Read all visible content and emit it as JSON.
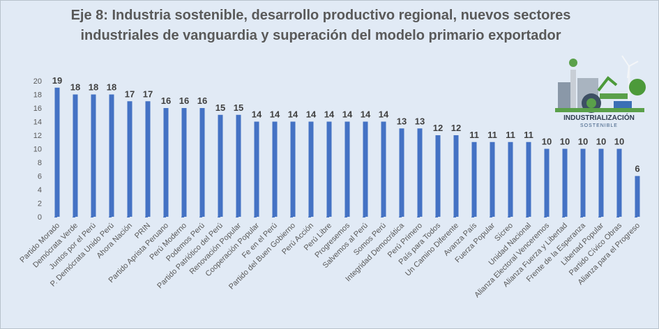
{
  "chart_data": {
    "type": "bar",
    "title": "Eje 8: Industria sostenible, desarrollo productivo regional, nuevos sectores industriales de vanguardia y superación del modelo primario exportador",
    "xlabel": "",
    "ylabel": "",
    "ylim": [
      0,
      20
    ],
    "yticks": [
      0,
      2,
      4,
      6,
      8,
      10,
      12,
      14,
      16,
      18,
      20
    ],
    "grid": false,
    "bar_color": "#4472c4",
    "categories": [
      "Partido Morado",
      "Demócrata Verde",
      "Juntos por el Perú",
      "P. Demócrata Unido Perú",
      "Ahora Nación",
      "PRIN",
      "Partido Aprista Peruano",
      "Perú Moderno",
      "Podemos Perú",
      "Partido Patriótico del Perú",
      "Renovación Popular",
      "Cooperación Popular",
      "Fe en el Perú",
      "Partido del Buen Gobierno",
      "Perú Acción",
      "Perú Libre",
      "Progresemos",
      "Salvemos al Perú",
      "Somos Perú",
      "Integridad Democrática",
      "Perú Primero",
      "País para Todos",
      "Un Camino Diferente",
      "Avanza País",
      "Fuerza Popular",
      "Sícreo",
      "Unidad Nacional",
      "Alianza Electoral Venceremos",
      "Alianza Fuerza y Libertad",
      "Frente de la Esperanza",
      "Libertad Popular",
      "Partido Cívico Obras",
      "Alianza para el Progreso"
    ],
    "values": [
      19,
      18,
      18,
      18,
      17,
      17,
      16,
      16,
      16,
      15,
      15,
      14,
      14,
      14,
      14,
      14,
      14,
      14,
      14,
      13,
      13,
      12,
      12,
      11,
      11,
      11,
      11,
      10,
      10,
      10,
      10,
      10,
      6
    ]
  },
  "logo": {
    "title": "INDUSTRIALIZACIÓN",
    "subtitle": "SOSTENIBLE"
  }
}
